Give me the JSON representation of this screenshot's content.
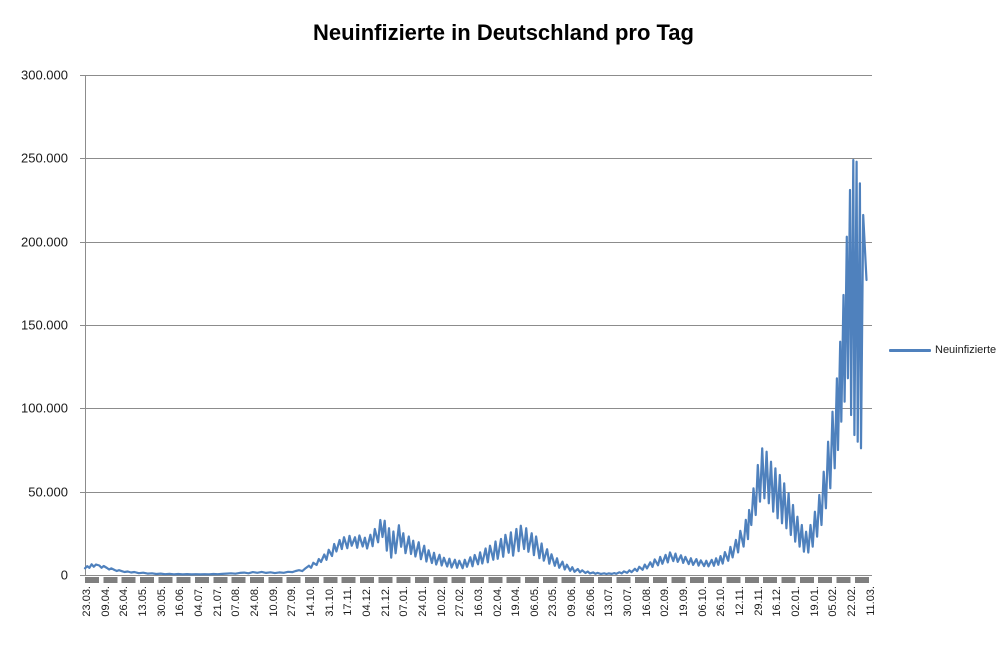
{
  "title": "Neuinfizierte in Deutschland pro Tag",
  "legend": {
    "label": "Neuinfizierte"
  },
  "colors": {
    "series": "#4F81BD",
    "gridline": "#8C8C8C",
    "axis_band": "#7F7F7F",
    "text": "#1A1A1A",
    "background": "#FFFFFF"
  },
  "chart_data": {
    "type": "line",
    "title": "Neuinfizierte in Deutschland pro Tag",
    "legend_entries": [
      "Neuinfizierte"
    ],
    "legend_position": "right",
    "grid": "horizontal-major",
    "ylabel": "",
    "xlabel": "",
    "ylim": [
      0,
      300000
    ],
    "y_tick_labels": [
      "300.000",
      "250.000",
      "200.000",
      "150.000",
      "100.000",
      "50.000",
      "0"
    ],
    "y_tick_values": [
      300000,
      250000,
      200000,
      150000,
      100000,
      50000,
      0
    ],
    "x_tick_labels": [
      "23.03.",
      "09.04.",
      "26.04.",
      "13.05.",
      "30.05.",
      "16.06.",
      "04.07.",
      "21.07.",
      "07.08.",
      "24.08.",
      "10.09.",
      "27.09.",
      "14.10.",
      "31.10.",
      "17.11.",
      "04.12.",
      "21.12.",
      "07.01.",
      "24.01.",
      "10.02.",
      "27.02.",
      "16.03.",
      "02.04.",
      "19.04.",
      "06.05.",
      "23.05.",
      "09.06.",
      "26.06.",
      "13.07.",
      "30.07.",
      "16.08.",
      "02.09.",
      "19.09.",
      "06.10.",
      "26.10.",
      "12.11.",
      "29.11.",
      "16.12.",
      "02.01.",
      "19.01.",
      "05.02.",
      "22.02.",
      "11.03."
    ],
    "x_label_interval_days": 17,
    "x_total_days": 717,
    "series": [
      {
        "name": "Neuinfizierte",
        "points": [
          [
            0,
            4000
          ],
          [
            2,
            5300
          ],
          [
            4,
            4300
          ],
          [
            6,
            6400
          ],
          [
            8,
            5000
          ],
          [
            10,
            6300
          ],
          [
            13,
            5700
          ],
          [
            15,
            4300
          ],
          [
            17,
            5400
          ],
          [
            20,
            4200
          ],
          [
            22,
            3300
          ],
          [
            24,
            4000
          ],
          [
            27,
            3000
          ],
          [
            29,
            2400
          ],
          [
            31,
            2900
          ],
          [
            34,
            2200
          ],
          [
            36,
            1800
          ],
          [
            39,
            2100
          ],
          [
            42,
            1500
          ],
          [
            45,
            1800
          ],
          [
            49,
            1100
          ],
          [
            53,
            1400
          ],
          [
            57,
            850
          ],
          [
            61,
            1050
          ],
          [
            65,
            600
          ],
          [
            69,
            850
          ],
          [
            73,
            500
          ],
          [
            77,
            700
          ],
          [
            81,
            420
          ],
          [
            85,
            600
          ],
          [
            89,
            350
          ],
          [
            93,
            520
          ],
          [
            97,
            380
          ],
          [
            101,
            500
          ],
          [
            105,
            350
          ],
          [
            109,
            460
          ],
          [
            113,
            400
          ],
          [
            117,
            580
          ],
          [
            121,
            480
          ],
          [
            125,
            650
          ],
          [
            129,
            850
          ],
          [
            133,
            1050
          ],
          [
            137,
            780
          ],
          [
            141,
            1250
          ],
          [
            145,
            1450
          ],
          [
            149,
            1000
          ],
          [
            153,
            1750
          ],
          [
            157,
            1350
          ],
          [
            161,
            1850
          ],
          [
            165,
            1250
          ],
          [
            169,
            1650
          ],
          [
            173,
            1150
          ],
          [
            177,
            1550
          ],
          [
            181,
            1350
          ],
          [
            185,
            1950
          ],
          [
            189,
            1750
          ],
          [
            192,
            2400
          ],
          [
            195,
            2900
          ],
          [
            198,
            2350
          ],
          [
            201,
            4100
          ],
          [
            204,
            5600
          ],
          [
            206,
            4300
          ],
          [
            208,
            7300
          ],
          [
            211,
            6000
          ],
          [
            213,
            9600
          ],
          [
            215,
            7800
          ],
          [
            218,
            12300
          ],
          [
            220,
            9100
          ],
          [
            222,
            15100
          ],
          [
            225,
            11400
          ],
          [
            227,
            18600
          ],
          [
            229,
            14100
          ],
          [
            232,
            21000
          ],
          [
            234,
            15600
          ],
          [
            236,
            22700
          ],
          [
            239,
            16100
          ],
          [
            241,
            23500
          ],
          [
            243,
            17600
          ],
          [
            246,
            22600
          ],
          [
            248,
            16300
          ],
          [
            250,
            23700
          ],
          [
            253,
            17100
          ],
          [
            255,
            22400
          ],
          [
            257,
            15900
          ],
          [
            260,
            24100
          ],
          [
            262,
            17300
          ],
          [
            264,
            27600
          ],
          [
            267,
            19600
          ],
          [
            269,
            33000
          ],
          [
            271,
            22800
          ],
          [
            273,
            32600
          ],
          [
            275,
            14600
          ],
          [
            277,
            28100
          ],
          [
            279,
            10400
          ],
          [
            281,
            26100
          ],
          [
            283,
            13000
          ],
          [
            286,
            29900
          ],
          [
            288,
            16900
          ],
          [
            290,
            25100
          ],
          [
            292,
            13100
          ],
          [
            295,
            23100
          ],
          [
            297,
            12600
          ],
          [
            299,
            20600
          ],
          [
            301,
            11100
          ],
          [
            304,
            19700
          ],
          [
            306,
            9500
          ],
          [
            309,
            17600
          ],
          [
            311,
            8100
          ],
          [
            313,
            14800
          ],
          [
            316,
            7200
          ],
          [
            318,
            13300
          ],
          [
            320,
            6300
          ],
          [
            323,
            12100
          ],
          [
            325,
            5700
          ],
          [
            327,
            10300
          ],
          [
            330,
            5100
          ],
          [
            332,
            9800
          ],
          [
            334,
            4500
          ],
          [
            337,
            9100
          ],
          [
            339,
            4300
          ],
          [
            341,
            8600
          ],
          [
            344,
            4100
          ],
          [
            346,
            9100
          ],
          [
            348,
            4900
          ],
          [
            351,
            10600
          ],
          [
            353,
            5200
          ],
          [
            355,
            12000
          ],
          [
            358,
            6400
          ],
          [
            360,
            13600
          ],
          [
            362,
            6900
          ],
          [
            365,
            15900
          ],
          [
            367,
            7600
          ],
          [
            369,
            17600
          ],
          [
            372,
            9100
          ],
          [
            374,
            20100
          ],
          [
            376,
            9700
          ],
          [
            379,
            21600
          ],
          [
            381,
            10900
          ],
          [
            383,
            24100
          ],
          [
            386,
            13300
          ],
          [
            388,
            25600
          ],
          [
            390,
            11600
          ],
          [
            393,
            27600
          ],
          [
            395,
            14300
          ],
          [
            397,
            29600
          ],
          [
            400,
            15600
          ],
          [
            402,
            28100
          ],
          [
            404,
            13900
          ],
          [
            407,
            25100
          ],
          [
            409,
            11900
          ],
          [
            411,
            23100
          ],
          [
            414,
            10100
          ],
          [
            416,
            18900
          ],
          [
            418,
            8600
          ],
          [
            421,
            15500
          ],
          [
            423,
            6800
          ],
          [
            425,
            12400
          ],
          [
            428,
            5500
          ],
          [
            430,
            10000
          ],
          [
            432,
            4300
          ],
          [
            435,
            8000
          ],
          [
            437,
            3300
          ],
          [
            439,
            6200
          ],
          [
            442,
            2500
          ],
          [
            444,
            4700
          ],
          [
            446,
            1900
          ],
          [
            449,
            3600
          ],
          [
            451,
            1600
          ],
          [
            453,
            2800
          ],
          [
            456,
            1200
          ],
          [
            458,
            2100
          ],
          [
            460,
            950
          ],
          [
            463,
            1550
          ],
          [
            465,
            750
          ],
          [
            467,
            1250
          ],
          [
            470,
            650
          ],
          [
            473,
            1050
          ],
          [
            475,
            580
          ],
          [
            477,
            980
          ],
          [
            480,
            650
          ],
          [
            482,
            1150
          ],
          [
            484,
            750
          ],
          [
            487,
            1650
          ],
          [
            489,
            950
          ],
          [
            491,
            2150
          ],
          [
            494,
            1350
          ],
          [
            496,
            2850
          ],
          [
            498,
            1750
          ],
          [
            501,
            3750
          ],
          [
            503,
            2350
          ],
          [
            505,
            4950
          ],
          [
            508,
            3150
          ],
          [
            510,
            6250
          ],
          [
            512,
            3950
          ],
          [
            515,
            7650
          ],
          [
            517,
            4850
          ],
          [
            519,
            9350
          ],
          [
            522,
            5850
          ],
          [
            524,
            10850
          ],
          [
            526,
            6750
          ],
          [
            529,
            12050
          ],
          [
            531,
            7550
          ],
          [
            533,
            13550
          ],
          [
            536,
            8350
          ],
          [
            538,
            12850
          ],
          [
            540,
            7850
          ],
          [
            543,
            11850
          ],
          [
            545,
            7250
          ],
          [
            547,
            10850
          ],
          [
            550,
            6550
          ],
          [
            552,
            10050
          ],
          [
            554,
            6050
          ],
          [
            557,
            9550
          ],
          [
            559,
            5650
          ],
          [
            561,
            8750
          ],
          [
            564,
            5350
          ],
          [
            566,
            8550
          ],
          [
            568,
            5250
          ],
          [
            571,
            9050
          ],
          [
            573,
            5550
          ],
          [
            575,
            10050
          ],
          [
            577,
            6150
          ],
          [
            579,
            11350
          ],
          [
            581,
            6850
          ],
          [
            583,
            13750
          ],
          [
            586,
            8550
          ],
          [
            588,
            16850
          ],
          [
            590,
            10550
          ],
          [
            593,
            21050
          ],
          [
            595,
            13550
          ],
          [
            597,
            26550
          ],
          [
            600,
            17050
          ],
          [
            602,
            33050
          ],
          [
            604,
            21550
          ],
          [
            605,
            39000
          ],
          [
            607,
            30000
          ],
          [
            609,
            52000
          ],
          [
            611,
            36000
          ],
          [
            613,
            66000
          ],
          [
            615,
            44000
          ],
          [
            617,
            76000
          ],
          [
            619,
            46000
          ],
          [
            621,
            74000
          ],
          [
            623,
            43000
          ],
          [
            625,
            68000
          ],
          [
            627,
            38000
          ],
          [
            629,
            64000
          ],
          [
            631,
            34000
          ],
          [
            633,
            60000
          ],
          [
            635,
            31000
          ],
          [
            637,
            55000
          ],
          [
            639,
            28000
          ],
          [
            641,
            49000
          ],
          [
            643,
            24000
          ],
          [
            645,
            42000
          ],
          [
            647,
            20000
          ],
          [
            649,
            35000
          ],
          [
            651,
            17000
          ],
          [
            653,
            30000
          ],
          [
            655,
            14000
          ],
          [
            657,
            26000
          ],
          [
            659,
            13500
          ],
          [
            661,
            30000
          ],
          [
            663,
            17000
          ],
          [
            665,
            38000
          ],
          [
            667,
            23000
          ],
          [
            669,
            48000
          ],
          [
            671,
            30000
          ],
          [
            673,
            62000
          ],
          [
            675,
            40000
          ],
          [
            677,
            80000
          ],
          [
            679,
            52000
          ],
          [
            681,
            98000
          ],
          [
            683,
            64000
          ],
          [
            685,
            118000
          ],
          [
            686,
            75000
          ],
          [
            688,
            140000
          ],
          [
            689,
            92000
          ],
          [
            691,
            168000
          ],
          [
            692,
            104000
          ],
          [
            694,
            203000
          ],
          [
            695,
            118000
          ],
          [
            697,
            231000
          ],
          [
            698,
            96000
          ],
          [
            700,
            249000
          ],
          [
            701,
            84000
          ],
          [
            703,
            248000
          ],
          [
            704,
            80000
          ],
          [
            706,
            235000
          ],
          [
            707,
            76000
          ],
          [
            709,
            216000
          ],
          [
            712,
            177000
          ]
        ]
      }
    ]
  }
}
